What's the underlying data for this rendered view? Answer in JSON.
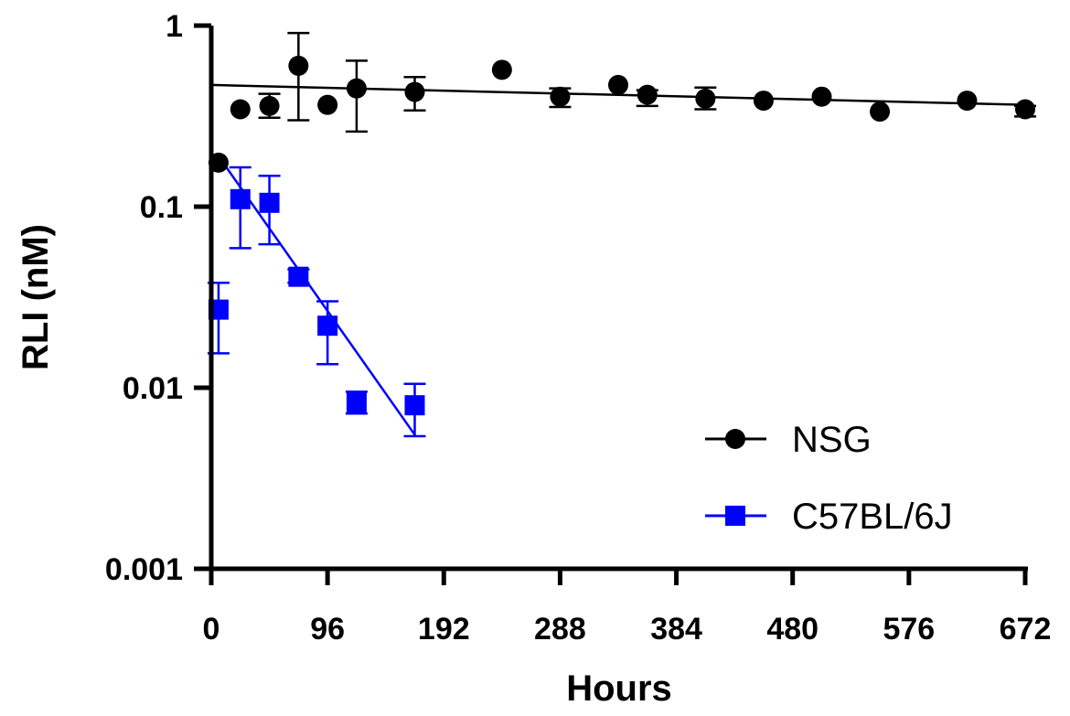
{
  "chart_data": {
    "type": "scatter",
    "title": "",
    "xlabel": "Hours",
    "ylabel": "RLI (nM)",
    "xlim": [
      0,
      672
    ],
    "ylim": [
      0.001,
      1
    ],
    "yscale": "log",
    "xticks": [
      0,
      96,
      192,
      288,
      384,
      480,
      576,
      672
    ],
    "xtick_labels": [
      "0",
      "96",
      "192",
      "288",
      "384",
      "480",
      "576",
      "672"
    ],
    "yticks": [
      1,
      0.1,
      0.01,
      0.001
    ],
    "ytick_labels": [
      "1",
      "0.1",
      "0.01",
      "0.001"
    ],
    "legend_position": "lower-right",
    "series": [
      {
        "name": "NSG",
        "marker": "circle",
        "color": "#000000",
        "points": [
          {
            "x": 6,
            "y": 0.175
          },
          {
            "x": 24,
            "y": 0.345
          },
          {
            "x": 48,
            "y": 0.36,
            "err_low": 0.31,
            "err_high": 0.42
          },
          {
            "x": 72,
            "y": 0.6,
            "err_low": 0.3,
            "err_high": 0.91
          },
          {
            "x": 96,
            "y": 0.365
          },
          {
            "x": 120,
            "y": 0.45,
            "err_low": 0.26,
            "err_high": 0.64
          },
          {
            "x": 168,
            "y": 0.43,
            "err_low": 0.34,
            "err_high": 0.52
          },
          {
            "x": 240,
            "y": 0.57
          },
          {
            "x": 288,
            "y": 0.405,
            "err_low": 0.355,
            "err_high": 0.45
          },
          {
            "x": 336,
            "y": 0.47
          },
          {
            "x": 360,
            "y": 0.415,
            "err_low": 0.36,
            "err_high": 0.44
          },
          {
            "x": 408,
            "y": 0.395,
            "err_low": 0.345,
            "err_high": 0.455
          },
          {
            "x": 456,
            "y": 0.385
          },
          {
            "x": 504,
            "y": 0.405
          },
          {
            "x": 552,
            "y": 0.335
          },
          {
            "x": 624,
            "y": 0.385
          },
          {
            "x": 672,
            "y": 0.345,
            "err_low": 0.315,
            "err_high": 0.36
          }
        ],
        "fit": [
          {
            "x": 0,
            "y": 0.47
          },
          {
            "x": 672,
            "y": 0.365
          }
        ]
      },
      {
        "name": "C57BL/6J",
        "marker": "square",
        "color": "#0000ff",
        "points": [
          {
            "x": 6,
            "y": 0.027,
            "err_low": 0.0155,
            "err_high": 0.038
          },
          {
            "x": 24,
            "y": 0.11,
            "err_low": 0.059,
            "err_high": 0.165
          },
          {
            "x": 48,
            "y": 0.105,
            "err_low": 0.062,
            "err_high": 0.148
          },
          {
            "x": 72,
            "y": 0.041,
            "err_low": 0.038,
            "err_high": 0.045
          },
          {
            "x": 96,
            "y": 0.022,
            "err_low": 0.0135,
            "err_high": 0.03
          },
          {
            "x": 120,
            "y": 0.0083,
            "err_low": 0.0072,
            "err_high": 0.0095
          },
          {
            "x": 168,
            "y": 0.008,
            "err_low": 0.0054,
            "err_high": 0.0105
          }
        ],
        "fit": [
          {
            "x": 6,
            "y": 0.19
          },
          {
            "x": 168,
            "y": 0.0055
          }
        ]
      }
    ]
  }
}
